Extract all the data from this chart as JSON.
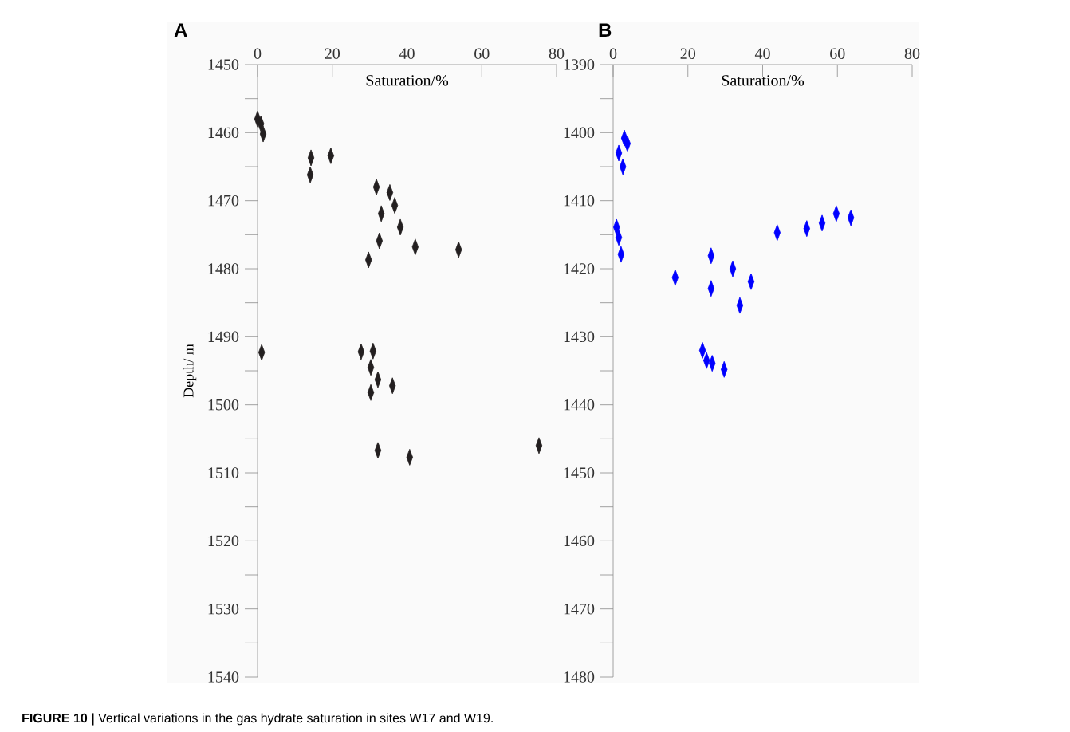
{
  "chart_data": [
    {
      "type": "scatter",
      "title": "A",
      "xlabel": "Saturation/%",
      "ylabel": "Depth/ m",
      "xlim": [
        0,
        80
      ],
      "xticks": [
        0,
        20,
        40,
        60,
        80
      ],
      "ylim": [
        1540,
        1450
      ],
      "yticks": [
        1450,
        {
          "value": 1455,
          "label": null
        },
        1460,
        {
          "value": 1465,
          "label": null
        },
        1470,
        {
          "value": 1475,
          "label": null
        },
        1480,
        {
          "value": 1485,
          "label": null
        },
        1490,
        {
          "value": 1495,
          "label": null
        },
        1500,
        {
          "value": 1505,
          "label": null
        },
        1510,
        {
          "value": 1515,
          "label": null
        },
        1520,
        {
          "value": 1525,
          "label": null
        },
        1530,
        {
          "value": 1535,
          "label": null
        },
        1540
      ],
      "marker": "diamond",
      "series": [
        {
          "color": "#231f20",
          "x": [
            0,
            0.9,
            1.5,
            14.3,
            14.1,
            19.6,
            31.8,
            35.4,
            36.7,
            33.1,
            38.2,
            32.6,
            42.2,
            53.8,
            29.7,
            1.1,
            27.7,
            30.9,
            30.3,
            32.2,
            36.1,
            30.3,
            32.2,
            40.7,
            75.3
          ],
          "values": [
            1458.0,
            1458.7,
            1460.2,
            1463.7,
            1466.2,
            1463.4,
            1468.0,
            1468.8,
            1470.7,
            1471.9,
            1473.9,
            1475.9,
            1476.8,
            1477.2,
            1478.7,
            1492.3,
            1492.2,
            1492.1,
            1494.5,
            1496.3,
            1497.2,
            1498.2,
            1506.7,
            1507.7,
            1506.0
          ]
        }
      ],
      "annotations": [
        "**FIGURE 10 |** Vertical variations in the gas hydrate saturation in sites W17 and W19."
      ]
    },
    {
      "type": "scatter",
      "title": "B",
      "xlabel": "Saturation/%",
      "xlim": [
        0,
        80
      ],
      "xticks": [
        0,
        20,
        40,
        60,
        80
      ],
      "ylim": [
        1480,
        1390
      ],
      "yticks": [
        1390,
        {
          "value": 1395,
          "label": null
        },
        1400,
        {
          "value": 1405,
          "label": null
        },
        1410,
        {
          "value": 1415,
          "label": null
        },
        1420,
        {
          "value": 1425,
          "label": null
        },
        1430,
        {
          "value": 1435,
          "label": null
        },
        1440,
        {
          "value": 1445,
          "label": null
        },
        1450,
        {
          "value": 1455,
          "label": null
        },
        1460,
        {
          "value": 1465,
          "label": null
        },
        1470,
        {
          "value": 1475,
          "label": null
        },
        1480
      ],
      "marker": "diamond",
      "series": [
        {
          "color": "#0000ff",
          "x": [
            3.0,
            3.8,
            1.5,
            2.6,
            0.9,
            1.5,
            2.1,
            16.6,
            26.2,
            26.2,
            32.0,
            36.9,
            33.9,
            43.9,
            51.8,
            55.9,
            59.7,
            63.6,
            23.9,
            25.0,
            26.5,
            29.7
          ],
          "values": [
            1400.8,
            1401.6,
            1403.0,
            1405.0,
            1413.9,
            1415.4,
            1417.9,
            1421.3,
            1418.1,
            1422.9,
            1420.0,
            1421.9,
            1425.4,
            1414.7,
            1414.1,
            1413.3,
            1411.9,
            1412.5,
            1432.0,
            1433.5,
            1433.9,
            1434.8
          ]
        }
      ]
    }
  ]
}
